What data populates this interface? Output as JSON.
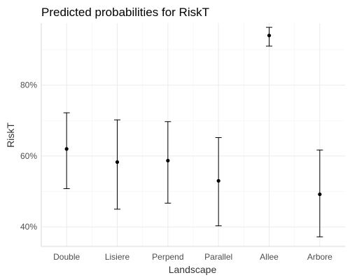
{
  "chart_data": {
    "type": "scatter",
    "title": "Predicted probabilities for RiskT",
    "xlabel": "Landscape",
    "ylabel": "RiskT",
    "categories": [
      "Double",
      "Lisiere",
      "Perpend",
      "Parallel",
      "Allee",
      "Arbore"
    ],
    "estimates": [
      0.62,
      0.583,
      0.587,
      0.53,
      0.94,
      0.492
    ],
    "lower": [
      0.508,
      0.45,
      0.467,
      0.403,
      0.91,
      0.372
    ],
    "upper": [
      0.722,
      0.702,
      0.697,
      0.652,
      0.963,
      0.617
    ],
    "ylim": [
      0.345,
      0.975
    ],
    "yticks": [
      0.4,
      0.6,
      0.8
    ],
    "ytick_labels": [
      "40%",
      "60%",
      "80%"
    ],
    "grid": true,
    "legend": "none"
  }
}
